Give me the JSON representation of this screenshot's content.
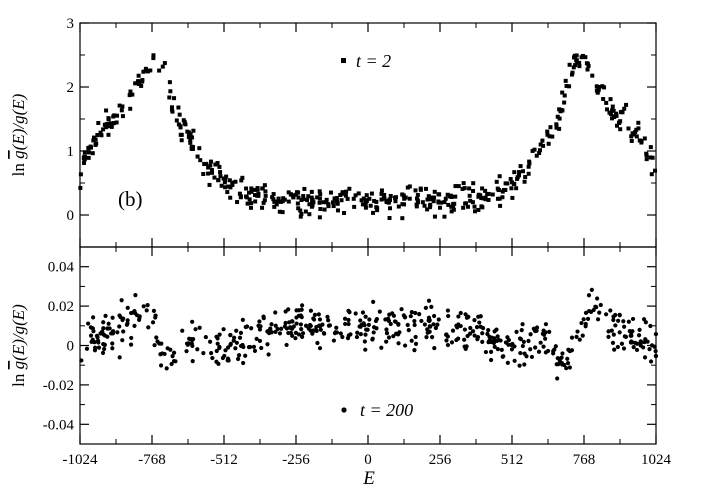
{
  "chart_data": [
    {
      "type": "scatter",
      "panel_label": "(b)",
      "legend": {
        "marker": "square",
        "label": "t = 2",
        "placement": "top-right"
      },
      "ylabel": {
        "prefix": "ln ",
        "gbar": "g",
        "rest": "(E)/g(E)"
      },
      "xlim": [
        -1024,
        1024
      ],
      "ylim": [
        -0.5,
        3
      ],
      "yticks": [
        0,
        1,
        2,
        3
      ],
      "xticks": [
        -1024,
        -768,
        -512,
        -256,
        0,
        256,
        512,
        768,
        1024
      ],
      "envelope": {
        "x": [
          -1024,
          -1000,
          -960,
          -920,
          -880,
          -840,
          -800,
          -760,
          -720,
          -700,
          -680,
          -640,
          -600,
          -560,
          -520,
          -480,
          -440,
          -400,
          -360,
          -320,
          -256,
          -200,
          -128,
          -64,
          0
        ],
        "y": [
          0.6,
          0.95,
          1.3,
          1.45,
          1.5,
          1.9,
          2.2,
          2.45,
          2.3,
          1.85,
          1.55,
          1.25,
          0.95,
          0.7,
          0.55,
          0.4,
          0.32,
          0.3,
          0.28,
          0.26,
          0.24,
          0.23,
          0.22,
          0.22,
          0.22
        ]
      },
      "spread": 0.18,
      "n_points": 520,
      "seed": 7
    },
    {
      "type": "scatter",
      "legend": {
        "marker": "circle",
        "label": "t = 200",
        "placement": "bottom-center"
      },
      "ylabel": {
        "prefix": "ln ",
        "gbar": "g",
        "rest": "(E)/g(E)"
      },
      "xlabel": "E",
      "xlim": [
        -1024,
        1024
      ],
      "ylim": [
        -0.05,
        0.05
      ],
      "yticks": [
        -0.04,
        -0.02,
        0,
        0.02,
        0.04
      ],
      "ytick_labels": [
        "-0.04",
        "-0.02",
        "0",
        "0.02",
        "0.04"
      ],
      "xticks": [
        -1024,
        -768,
        -512,
        -256,
        0,
        256,
        512,
        768,
        1024
      ],
      "envelope": {
        "x": [
          -1024,
          -960,
          -900,
          -860,
          -820,
          -790,
          -770,
          -740,
          -700,
          -660,
          -620,
          -560,
          -512,
          -448,
          -384,
          -320,
          -256,
          -192,
          -128,
          -64,
          0
        ],
        "y": [
          0.0,
          0.004,
          0.006,
          0.01,
          0.016,
          0.02,
          0.014,
          0.0,
          -0.008,
          -0.002,
          0.004,
          0.0,
          -0.002,
          0.002,
          0.006,
          0.008,
          0.009,
          0.01,
          0.01,
          0.01,
          0.009
        ]
      },
      "spread": 0.0085,
      "n_points": 560,
      "seed": 11
    }
  ]
}
